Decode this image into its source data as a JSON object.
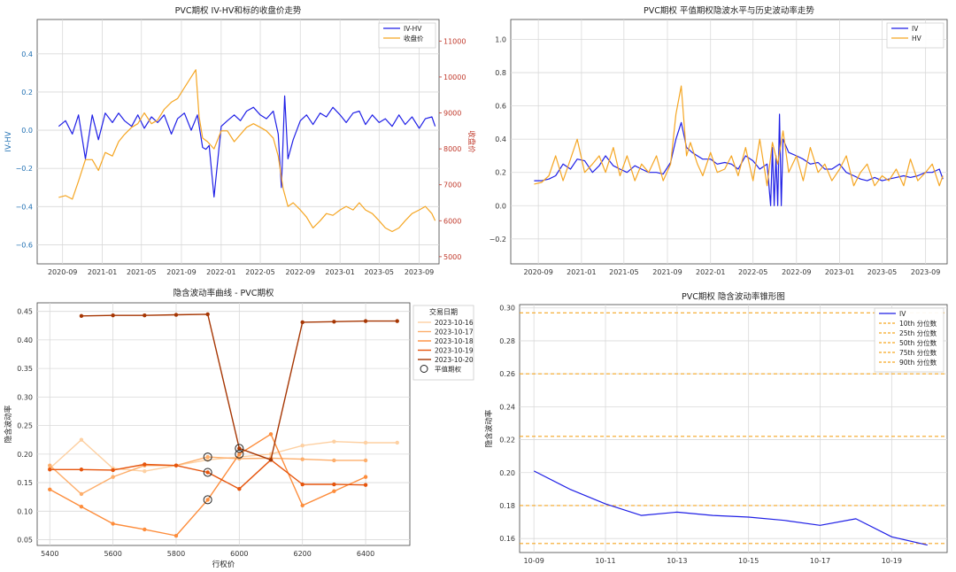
{
  "chart_data": [
    {
      "id": "p1",
      "type": "line",
      "title": "PVC期权 IV-HV和标的收盘价走势",
      "ylabel": "IV-HV",
      "ylabel_right": "收盘价",
      "grid": true,
      "legend": "top-right",
      "x_ticks": [
        "2020-09",
        "2021-01",
        "2021-05",
        "2021-09",
        "2022-01",
        "2022-05",
        "2022-09",
        "2023-01",
        "2023-05",
        "2023-09"
      ],
      "y_ticks": [
        "−0.6",
        "−0.4",
        "−0.2",
        "0.0",
        "0.2",
        "0.4"
      ],
      "y2_ticks": [
        "5000",
        "6000",
        "7000",
        "8000",
        "9000",
        "10000",
        "11000"
      ],
      "xlim": [
        "2020-06-15",
        "2023-11-01"
      ],
      "ylim": [
        -0.7,
        0.58
      ],
      "y2lim": [
        4800,
        11600
      ],
      "series": [
        {
          "name": "IV-HV",
          "axis": "left",
          "color": "#1f1fe6",
          "x": [
            "2020-08-20",
            "2020-09-10",
            "2020-10-01",
            "2020-10-20",
            "2020-11-10",
            "2020-12-01",
            "2020-12-20",
            "2021-01-10",
            "2021-02-01",
            "2021-02-20",
            "2021-03-10",
            "2021-04-01",
            "2021-04-20",
            "2021-05-10",
            "2021-06-01",
            "2021-06-20",
            "2021-07-10",
            "2021-08-01",
            "2021-08-20",
            "2021-09-10",
            "2021-10-01",
            "2021-10-20",
            "2021-11-05",
            "2021-11-15",
            "2021-11-25",
            "2021-12-10",
            "2022-01-01",
            "2022-01-20",
            "2022-02-10",
            "2022-03-01",
            "2022-03-20",
            "2022-04-10",
            "2022-05-01",
            "2022-05-20",
            "2022-06-10",
            "2022-06-25",
            "2022-07-05",
            "2022-07-15",
            "2022-07-25",
            "2022-08-10",
            "2022-09-01",
            "2022-09-20",
            "2022-10-10",
            "2022-11-01",
            "2022-11-20",
            "2022-12-10",
            "2023-01-01",
            "2023-01-20",
            "2023-02-10",
            "2023-03-01",
            "2023-03-20",
            "2023-04-10",
            "2023-05-01",
            "2023-05-20",
            "2023-06-10",
            "2023-07-01",
            "2023-07-20",
            "2023-08-10",
            "2023-09-01",
            "2023-09-20",
            "2023-10-10",
            "2023-10-20"
          ],
          "y": [
            0.02,
            0.05,
            -0.02,
            0.08,
            -0.15,
            0.08,
            -0.05,
            0.09,
            0.04,
            0.09,
            0.05,
            0.02,
            0.08,
            0.01,
            0.07,
            0.04,
            0.08,
            -0.02,
            0.06,
            0.09,
            0.0,
            0.08,
            -0.09,
            -0.1,
            -0.08,
            -0.35,
            0.02,
            0.05,
            0.08,
            0.05,
            0.1,
            0.12,
            0.08,
            0.06,
            0.1,
            -0.02,
            -0.3,
            0.18,
            -0.15,
            -0.05,
            0.05,
            0.08,
            0.03,
            0.09,
            0.07,
            0.12,
            0.08,
            0.04,
            0.09,
            0.1,
            0.03,
            0.08,
            0.04,
            0.06,
            0.02,
            0.08,
            0.03,
            0.07,
            0.01,
            0.06,
            0.07,
            0.02
          ]
        },
        {
          "name": "收盘价",
          "axis": "right",
          "color": "#f5a623",
          "x": [
            "2020-08-20",
            "2020-09-10",
            "2020-10-01",
            "2020-10-20",
            "2020-11-10",
            "2020-12-01",
            "2020-12-20",
            "2021-01-10",
            "2021-02-01",
            "2021-02-20",
            "2021-03-10",
            "2021-04-01",
            "2021-04-20",
            "2021-05-10",
            "2021-06-01",
            "2021-06-20",
            "2021-07-10",
            "2021-08-01",
            "2021-08-20",
            "2021-09-10",
            "2021-10-01",
            "2021-10-15",
            "2021-10-25",
            "2021-11-05",
            "2021-11-20",
            "2021-12-10",
            "2022-01-01",
            "2022-01-20",
            "2022-02-10",
            "2022-03-01",
            "2022-03-20",
            "2022-04-10",
            "2022-05-01",
            "2022-05-20",
            "2022-06-10",
            "2022-06-25",
            "2022-07-10",
            "2022-07-25",
            "2022-08-10",
            "2022-09-01",
            "2022-09-20",
            "2022-10-10",
            "2022-11-01",
            "2022-11-20",
            "2022-12-10",
            "2023-01-01",
            "2023-01-20",
            "2023-02-10",
            "2023-03-01",
            "2023-03-20",
            "2023-04-10",
            "2023-05-01",
            "2023-05-20",
            "2023-06-10",
            "2023-07-01",
            "2023-07-20",
            "2023-08-10",
            "2023-09-01",
            "2023-09-20",
            "2023-10-10",
            "2023-10-20"
          ],
          "y": [
            6650,
            6700,
            6600,
            7100,
            7700,
            7700,
            7400,
            7900,
            7800,
            8200,
            8400,
            8600,
            8700,
            9000,
            8700,
            8800,
            9100,
            9300,
            9400,
            9700,
            10000,
            10200,
            8900,
            8300,
            8200,
            8000,
            8500,
            8500,
            8200,
            8400,
            8600,
            8700,
            8600,
            8500,
            8300,
            7800,
            6900,
            6400,
            6500,
            6300,
            6100,
            5800,
            6000,
            6200,
            6150,
            6300,
            6400,
            6300,
            6500,
            6300,
            6200,
            6000,
            5800,
            5700,
            5800,
            6000,
            6200,
            6300,
            6400,
            6200,
            6000
          ]
        }
      ]
    },
    {
      "id": "p2",
      "type": "line",
      "title": "PVC期权 平值期权隐波水平与历史波动率走势",
      "grid": true,
      "legend": "top-right",
      "x_ticks": [
        "2020-09",
        "2021-01",
        "2021-05",
        "2021-09",
        "2022-01",
        "2022-05",
        "2022-09",
        "2023-01",
        "2023-05",
        "2023-09"
      ],
      "y_ticks": [
        "−0.2",
        "0.0",
        "0.2",
        "0.4",
        "0.6",
        "0.8",
        "1.0"
      ],
      "xlim": [
        "2020-06-15",
        "2023-11-01"
      ],
      "ylim": [
        -0.35,
        1.12
      ],
      "series": [
        {
          "name": "IV",
          "color": "#1f1fe6",
          "x": [
            "2020-08-20",
            "2020-09-10",
            "2020-10-01",
            "2020-10-20",
            "2020-11-10",
            "2020-12-01",
            "2020-12-20",
            "2021-01-10",
            "2021-02-01",
            "2021-02-20",
            "2021-03-10",
            "2021-04-01",
            "2021-04-20",
            "2021-05-10",
            "2021-06-01",
            "2021-06-20",
            "2021-07-10",
            "2021-08-01",
            "2021-08-20",
            "2021-09-10",
            "2021-09-25",
            "2021-10-10",
            "2021-10-25",
            "2021-11-10",
            "2021-11-25",
            "2021-12-10",
            "2022-01-01",
            "2022-01-20",
            "2022-02-10",
            "2022-03-01",
            "2022-03-20",
            "2022-04-10",
            "2022-05-01",
            "2022-05-20",
            "2022-06-10",
            "2022-06-20",
            "2022-06-25",
            "2022-06-30",
            "2022-07-05",
            "2022-07-10",
            "2022-07-15",
            "2022-07-20",
            "2022-07-25",
            "2022-08-10",
            "2022-09-01",
            "2022-09-20",
            "2022-10-10",
            "2022-11-01",
            "2022-11-20",
            "2022-12-10",
            "2023-01-01",
            "2023-01-20",
            "2023-02-10",
            "2023-03-01",
            "2023-03-20",
            "2023-04-10",
            "2023-05-01",
            "2023-05-20",
            "2023-06-10",
            "2023-07-01",
            "2023-07-20",
            "2023-08-10",
            "2023-09-01",
            "2023-09-20",
            "2023-10-10",
            "2023-10-20"
          ],
          "y": [
            0.15,
            0.15,
            0.16,
            0.18,
            0.25,
            0.22,
            0.28,
            0.27,
            0.2,
            0.24,
            0.3,
            0.24,
            0.22,
            0.2,
            0.24,
            0.22,
            0.2,
            0.2,
            0.19,
            0.26,
            0.4,
            0.5,
            0.35,
            0.32,
            0.3,
            0.28,
            0.28,
            0.25,
            0.26,
            0.25,
            0.22,
            0.3,
            0.27,
            0.22,
            0.25,
            0.0,
            0.35,
            0.0,
            0.3,
            0.0,
            0.55,
            0.0,
            0.4,
            0.32,
            0.3,
            0.28,
            0.25,
            0.26,
            0.22,
            0.22,
            0.25,
            0.2,
            0.18,
            0.16,
            0.15,
            0.17,
            0.15,
            0.16,
            0.17,
            0.18,
            0.17,
            0.18,
            0.2,
            0.2,
            0.22,
            0.16
          ]
        },
        {
          "name": "HV",
          "color": "#f5a623",
          "x": [
            "2020-08-20",
            "2020-09-10",
            "2020-10-01",
            "2020-10-20",
            "2020-11-10",
            "2020-12-01",
            "2020-12-20",
            "2021-01-10",
            "2021-02-01",
            "2021-02-20",
            "2021-03-10",
            "2021-04-01",
            "2021-04-20",
            "2021-05-10",
            "2021-06-01",
            "2021-06-20",
            "2021-07-10",
            "2021-08-01",
            "2021-08-20",
            "2021-09-10",
            "2021-09-25",
            "2021-10-10",
            "2021-10-25",
            "2021-11-05",
            "2021-11-25",
            "2021-12-10",
            "2022-01-01",
            "2022-01-20",
            "2022-02-10",
            "2022-03-01",
            "2022-03-20",
            "2022-04-10",
            "2022-05-01",
            "2022-05-20",
            "2022-06-10",
            "2022-06-25",
            "2022-07-10",
            "2022-07-25",
            "2022-08-10",
            "2022-09-01",
            "2022-09-20",
            "2022-10-10",
            "2022-11-01",
            "2022-11-20",
            "2022-12-10",
            "2023-01-01",
            "2023-01-20",
            "2023-02-10",
            "2023-03-01",
            "2023-03-20",
            "2023-04-10",
            "2023-05-01",
            "2023-05-20",
            "2023-06-10",
            "2023-07-01",
            "2023-07-20",
            "2023-08-10",
            "2023-09-01",
            "2023-09-20",
            "2023-10-10",
            "2023-10-20"
          ],
          "y": [
            0.13,
            0.14,
            0.18,
            0.3,
            0.15,
            0.28,
            0.4,
            0.2,
            0.25,
            0.3,
            0.2,
            0.35,
            0.18,
            0.3,
            0.15,
            0.25,
            0.2,
            0.3,
            0.15,
            0.25,
            0.55,
            0.72,
            0.3,
            0.38,
            0.25,
            0.18,
            0.32,
            0.2,
            0.22,
            0.3,
            0.18,
            0.35,
            0.15,
            0.4,
            0.12,
            0.38,
            0.25,
            0.45,
            0.2,
            0.3,
            0.15,
            0.35,
            0.2,
            0.25,
            0.15,
            0.22,
            0.3,
            0.12,
            0.2,
            0.25,
            0.12,
            0.18,
            0.15,
            0.22,
            0.12,
            0.28,
            0.15,
            0.2,
            0.25,
            0.12,
            0.18
          ]
        }
      ]
    },
    {
      "id": "p3",
      "type": "line",
      "title": "隐含波动率曲线 - PVC期权",
      "xlabel": "行权价",
      "ylabel": "隐含波动率",
      "grid": true,
      "legend": "right-outside",
      "legend_title": "交易日期",
      "atm_label": "平值期权",
      "x_ticks": [
        "5400",
        "5600",
        "5800",
        "6000",
        "6200",
        "6400"
      ],
      "y_ticks": [
        "0.05",
        "0.10",
        "0.15",
        "0.20",
        "0.25",
        "0.30",
        "0.35",
        "0.40",
        "0.45"
      ],
      "xlim": [
        5360,
        6540
      ],
      "ylim": [
        0.04,
        0.465
      ],
      "series": [
        {
          "name": "2023-10-16",
          "color": "#fdd0a2",
          "x": [
            5400,
            5500,
            5600,
            5700,
            5800,
            5900,
            6000,
            6100,
            6200,
            6300,
            6400,
            6500
          ],
          "y": [
            0.175,
            0.225,
            0.175,
            0.17,
            0.18,
            0.19,
            0.195,
            0.2,
            0.215,
            0.222,
            0.22,
            0.22
          ]
        },
        {
          "name": "2023-10-17",
          "color": "#fdae6b",
          "x": [
            5400,
            5500,
            5600,
            5700,
            5800,
            5900,
            6000,
            6100,
            6200,
            6300,
            6400
          ],
          "y": [
            0.18,
            0.13,
            0.16,
            0.18,
            0.18,
            0.195,
            0.192,
            0.193,
            0.191,
            0.189,
            0.189
          ]
        },
        {
          "name": "2023-10-18",
          "color": "#fd8d3c",
          "x": [
            5400,
            5500,
            5600,
            5700,
            5800,
            5900,
            6000,
            6100,
            6200,
            6300,
            6400
          ],
          "y": [
            0.138,
            0.108,
            0.078,
            0.068,
            0.057,
            0.12,
            0.2,
            0.235,
            0.11,
            0.135,
            0.16
          ]
        },
        {
          "name": "2023-10-19",
          "color": "#e6550d",
          "x": [
            5400,
            5500,
            5600,
            5700,
            5800,
            5900,
            6000,
            6100,
            6200,
            6300,
            6400
          ],
          "y": [
            0.173,
            0.173,
            0.172,
            0.182,
            0.18,
            0.168,
            0.139,
            0.19,
            0.147,
            0.147,
            0.146
          ]
        },
        {
          "name": "2023-10-20",
          "color": "#a63603",
          "x": [
            5500,
            5600,
            5700,
            5800,
            5900,
            6000,
            6100,
            6200,
            6300,
            6400,
            6500
          ],
          "y": [
            0.442,
            0.443,
            0.443,
            0.444,
            0.445,
            0.21,
            0.19,
            0.431,
            0.432,
            0.433,
            0.433
          ]
        }
      ],
      "atm_points": [
        {
          "x": 5900,
          "y": 0.195
        },
        {
          "x": 5900,
          "y": 0.168
        },
        {
          "x": 5900,
          "y": 0.12
        },
        {
          "x": 6000,
          "y": 0.21
        },
        {
          "x": 6000,
          "y": 0.2
        }
      ]
    },
    {
      "id": "p4",
      "type": "line",
      "title": "PVC期权 隐含波动率锥形图",
      "ylabel": "隐含波动率",
      "grid": true,
      "legend": "top-right",
      "x_ticks": [
        "10-09",
        "10-11",
        "10-13",
        "10-15",
        "10-17",
        "10-19"
      ],
      "y_ticks": [
        "0.16",
        "0.18",
        "0.20",
        "0.22",
        "0.24",
        "0.26",
        "0.28",
        "0.30"
      ],
      "xlim": [
        8.6,
        20.55
      ],
      "ylim": [
        0.1515,
        0.302
      ],
      "series": [
        {
          "name": "IV",
          "color": "#1f1fe6",
          "x": [
            9,
            10,
            11,
            12,
            13,
            14,
            15,
            16,
            17,
            18,
            19,
            20
          ],
          "y": [
            0.201,
            0.19,
            0.181,
            0.174,
            0.176,
            0.174,
            0.173,
            0.171,
            0.168,
            0.172,
            0.161,
            0.156
          ]
        }
      ],
      "percentiles": [
        {
          "name": "10th 分位数",
          "value": 0.157,
          "color": "#f5a623"
        },
        {
          "name": "25th 分位数",
          "value": 0.18,
          "color": "#f5a623"
        },
        {
          "name": "50th 分位数",
          "value": 0.222,
          "color": "#f5a623"
        },
        {
          "name": "75th 分位数",
          "value": 0.26,
          "color": "#f5a623"
        },
        {
          "name": "90th 分位数",
          "value": 0.297,
          "color": "#f5a623"
        }
      ]
    }
  ]
}
